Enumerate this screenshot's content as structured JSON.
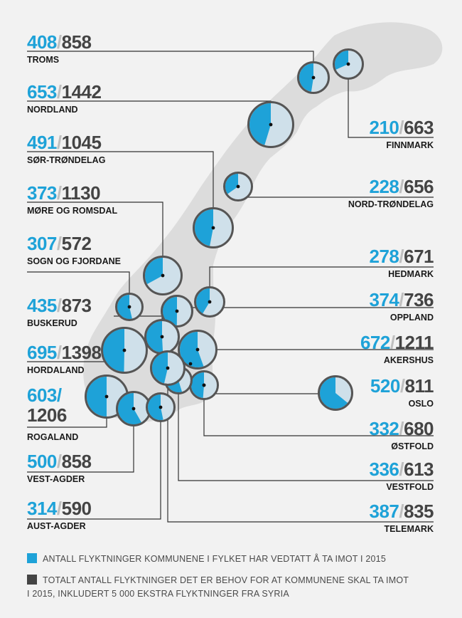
{
  "colors": {
    "accepted": "#1ea2d8",
    "needed_fill": "#cfe0ea",
    "outline": "#555555",
    "leader": "#333333",
    "map": "#dcdcdc",
    "slash": "#bfbfbf",
    "total_text": "#444444"
  },
  "chart_data": {
    "type": "pie",
    "title": "",
    "series_legend": [
      {
        "key": "accepted",
        "label": "ANTALL FLYKTNINGER KOMMUNENE I FYLKET HAR VEDTATT Å TA IMOT I 2015"
      },
      {
        "key": "needed",
        "label_lines": [
          "TOTALT ANTALL FLYKTNINGER DET ER BEHOV FOR AT KOMMUNENE SKAL TA IMOT",
          "I 2015, INKLUDERT 5 000 EKSTRA FLYKTNINGER FRA SYRIA"
        ]
      }
    ],
    "counties": [
      {
        "name": "TROMS",
        "accepted": 408,
        "needed": 858,
        "accepted_label": "408",
        "needed_label": "858"
      },
      {
        "name": "NORDLAND",
        "accepted": 653,
        "needed": 1442,
        "accepted_label": "653",
        "needed_label": "1442"
      },
      {
        "name": "SØR-TRØNDELAG",
        "accepted": 491,
        "needed": 1045,
        "accepted_label": "491",
        "needed_label": "1045"
      },
      {
        "name": "MØRE OG ROMSDAL",
        "accepted": 373,
        "needed": 1130,
        "accepted_label": "373",
        "needed_label": "1130"
      },
      {
        "name": "SOGN OG FJORDANE",
        "accepted": 307,
        "needed": 572,
        "accepted_label": "307",
        "needed_label": "572"
      },
      {
        "name": "BUSKERUD",
        "accepted": 435,
        "needed": 873,
        "accepted_label": "435",
        "needed_label": "873"
      },
      {
        "name": "HORDALAND",
        "accepted": 695,
        "needed": 1398,
        "accepted_label": "695",
        "needed_label": "1398"
      },
      {
        "name": "ROGALAND",
        "accepted": 603,
        "needed": 1206,
        "accepted_label": "603/",
        "needed_label": "1206"
      },
      {
        "name": "VEST-AGDER",
        "accepted": 500,
        "needed": 858,
        "accepted_label": "500",
        "needed_label": "858"
      },
      {
        "name": "AUST-AGDER",
        "accepted": 314,
        "needed": 590,
        "accepted_label": "314",
        "needed_label": "590"
      },
      {
        "name": "FINNMARK",
        "accepted": 210,
        "needed": 663,
        "accepted_label": "210",
        "needed_label": "663"
      },
      {
        "name": "NORD-TRØNDELAG",
        "accepted": 228,
        "needed": 656,
        "accepted_label": "228",
        "needed_label": "656"
      },
      {
        "name": "HEDMARK",
        "accepted": 278,
        "needed": 671,
        "accepted_label": "278",
        "needed_label": "671"
      },
      {
        "name": "OPPLAND",
        "accepted": 374,
        "needed": 736,
        "accepted_label": "374",
        "needed_label": "736"
      },
      {
        "name": "AKERSHUS",
        "accepted": 672,
        "needed": 1211,
        "accepted_label": "672",
        "needed_label": "1211"
      },
      {
        "name": "OSLO",
        "accepted": 520,
        "needed": 811,
        "accepted_label": "520",
        "needed_label": "811"
      },
      {
        "name": "ØSTFOLD",
        "accepted": 332,
        "needed": 680,
        "accepted_label": "332",
        "needed_label": "680"
      },
      {
        "name": "VESTFOLD",
        "accepted": 336,
        "needed": 613,
        "accepted_label": "336",
        "needed_label": "613"
      },
      {
        "name": "TELEMARK",
        "accepted": 387,
        "needed": 835,
        "accepted_label": "387",
        "needed_label": "835"
      }
    ]
  }
}
